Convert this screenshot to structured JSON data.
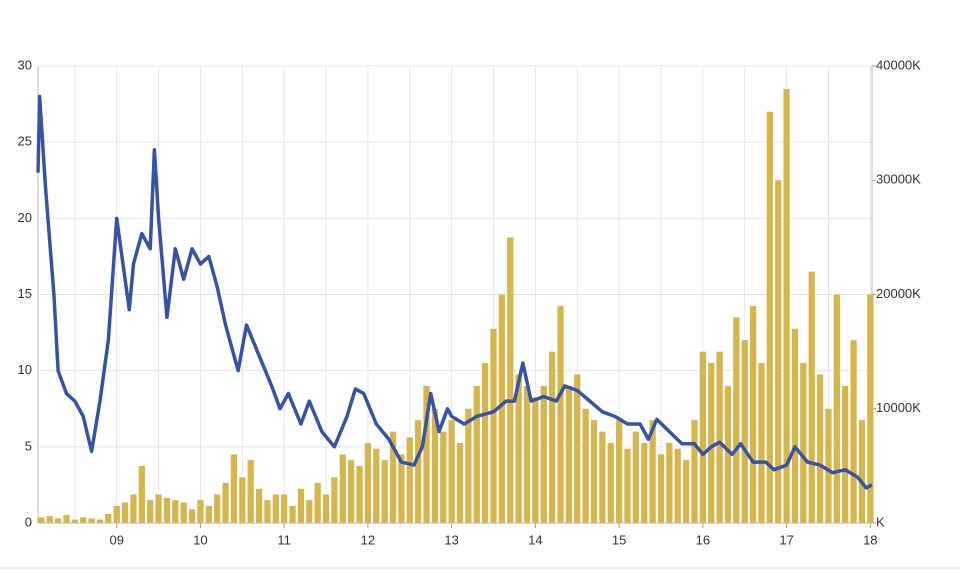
{
  "chart_data": {
    "type": "combo",
    "grid": true,
    "xlim": [
      2008.06,
      2018.02
    ],
    "xticks": [
      {
        "value": 2009,
        "label": "09"
      },
      {
        "value": 2010,
        "label": "10"
      },
      {
        "value": 2011,
        "label": "11"
      },
      {
        "value": 2012,
        "label": "12"
      },
      {
        "value": 2013,
        "label": "13"
      },
      {
        "value": 2014,
        "label": "14"
      },
      {
        "value": 2015,
        "label": "15"
      },
      {
        "value": 2016,
        "label": "16"
      },
      {
        "value": 2017,
        "label": "17"
      },
      {
        "value": 2018,
        "label": "18"
      }
    ],
    "x_minor_ticks": [
      2008.5,
      2009.5,
      2010.5,
      2011.5,
      2012.5,
      2013.5,
      2014.5,
      2015.5,
      2016.5,
      2017.5
    ],
    "ylim": [
      0,
      30
    ],
    "yticks": [
      0,
      5,
      10,
      15,
      20,
      25,
      30
    ],
    "y2lim": [
      0,
      40000
    ],
    "y2ticks": [
      {
        "value": 0,
        "label": "K"
      },
      {
        "value": 10000,
        "label": "10000K"
      },
      {
        "value": 20000,
        "label": "20000K"
      },
      {
        "value": 30000,
        "label": "30000K"
      },
      {
        "value": 40000,
        "label": "40000K"
      }
    ],
    "series": [
      {
        "type": "bar",
        "axis": "y2",
        "color": "#d6b64c",
        "x": [
          2008.1,
          2008.2,
          2008.3,
          2008.4,
          2008.5,
          2008.6,
          2008.7,
          2008.8,
          2008.9,
          2009.0,
          2009.1,
          2009.2,
          2009.3,
          2009.4,
          2009.5,
          2009.6,
          2009.7,
          2009.8,
          2009.9,
          2010.0,
          2010.1,
          2010.2,
          2010.3,
          2010.4,
          2010.5,
          2010.6,
          2010.7,
          2010.8,
          2010.9,
          2011.0,
          2011.1,
          2011.2,
          2011.3,
          2011.4,
          2011.5,
          2011.6,
          2011.7,
          2011.8,
          2011.9,
          2012.0,
          2012.1,
          2012.2,
          2012.3,
          2012.4,
          2012.5,
          2012.6,
          2012.7,
          2012.8,
          2012.9,
          2013.0,
          2013.1,
          2013.2,
          2013.3,
          2013.4,
          2013.5,
          2013.6,
          2013.7,
          2013.8,
          2013.9,
          2014.0,
          2014.1,
          2014.2,
          2014.3,
          2014.4,
          2014.5,
          2014.6,
          2014.7,
          2014.8,
          2014.9,
          2015.0,
          2015.1,
          2015.2,
          2015.3,
          2015.4,
          2015.5,
          2015.6,
          2015.7,
          2015.8,
          2015.9,
          2016.0,
          2016.1,
          2016.2,
          2016.3,
          2016.4,
          2016.5,
          2016.6,
          2016.7,
          2016.8,
          2016.9,
          2017.0,
          2017.1,
          2017.2,
          2017.3,
          2017.4,
          2017.5,
          2017.6,
          2017.7,
          2017.8,
          2017.9,
          2018.0
        ],
        "values": [
          500,
          600,
          400,
          700,
          300,
          500,
          400,
          300,
          800,
          1500,
          1800,
          2500,
          5000,
          2000,
          2500,
          2200,
          2000,
          1800,
          1200,
          2000,
          1500,
          2500,
          3500,
          6000,
          4000,
          5500,
          3000,
          2000,
          2500,
          2500,
          1500,
          3000,
          2000,
          3500,
          2500,
          4000,
          6000,
          5500,
          5000,
          7000,
          6500,
          5500,
          8000,
          6000,
          7500,
          9000,
          12000,
          10000,
          8000,
          9000,
          7000,
          10000,
          12000,
          14000,
          17000,
          20000,
          25000,
          13000,
          12000,
          11000,
          12000,
          15000,
          19000,
          12000,
          13000,
          10000,
          9000,
          8000,
          7000,
          9000,
          6500,
          8000,
          7000,
          9000,
          6000,
          7000,
          6500,
          5500,
          9000,
          15000,
          14000,
          15000,
          12000,
          18000,
          16000,
          19000,
          14000,
          36000,
          30000,
          38000,
          17000,
          14000,
          22000,
          13000,
          10000,
          20000,
          12000,
          16000,
          9000,
          20000
        ]
      },
      {
        "type": "line",
        "color": "#3653a5",
        "x": [
          2008.06,
          2008.08,
          2008.15,
          2008.25,
          2008.3,
          2008.4,
          2008.5,
          2008.6,
          2008.7,
          2008.8,
          2008.9,
          2009.0,
          2009.1,
          2009.15,
          2009.2,
          2009.3,
          2009.4,
          2009.45,
          2009.5,
          2009.6,
          2009.7,
          2009.8,
          2009.9,
          2010.0,
          2010.1,
          2010.2,
          2010.3,
          2010.45,
          2010.55,
          2010.7,
          2010.85,
          2010.95,
          2011.05,
          2011.2,
          2011.3,
          2011.45,
          2011.6,
          2011.75,
          2011.85,
          2011.95,
          2012.1,
          2012.25,
          2012.4,
          2012.55,
          2012.65,
          2012.75,
          2012.85,
          2012.95,
          2013.0,
          2013.15,
          2013.3,
          2013.5,
          2013.65,
          2013.75,
          2013.85,
          2013.95,
          2014.1,
          2014.25,
          2014.35,
          2014.5,
          2014.65,
          2014.8,
          2014.95,
          2015.1,
          2015.25,
          2015.35,
          2015.45,
          2015.6,
          2015.75,
          2015.9,
          2016.0,
          2016.1,
          2016.2,
          2016.35,
          2016.45,
          2016.6,
          2016.75,
          2016.85,
          2017.0,
          2017.1,
          2017.25,
          2017.4,
          2017.55,
          2017.7,
          2017.85,
          2017.95,
          2018.02
        ],
        "values": [
          23,
          28,
          22,
          15,
          10,
          8.5,
          8,
          7,
          4.7,
          8,
          12,
          20,
          16,
          14,
          17,
          19,
          18,
          24.5,
          20,
          13.5,
          18,
          16,
          18,
          17,
          17.5,
          15.5,
          13,
          10,
          13,
          11,
          9,
          7.5,
          8.5,
          6.5,
          8,
          6,
          5,
          7,
          8.8,
          8.5,
          6.5,
          5.5,
          4,
          3.8,
          5,
          8.5,
          6,
          7.5,
          7,
          6.5,
          7,
          7.3,
          8,
          8,
          10.5,
          8,
          8.3,
          8,
          9,
          8.7,
          8,
          7.3,
          7,
          6.5,
          6.5,
          5.5,
          6.8,
          6,
          5.2,
          5.2,
          4.5,
          5,
          5.3,
          4.5,
          5.2,
          4,
          4,
          3.5,
          3.8,
          5,
          4,
          3.8,
          3.3,
          3.5,
          3,
          2.3,
          2.5
        ]
      }
    ]
  }
}
